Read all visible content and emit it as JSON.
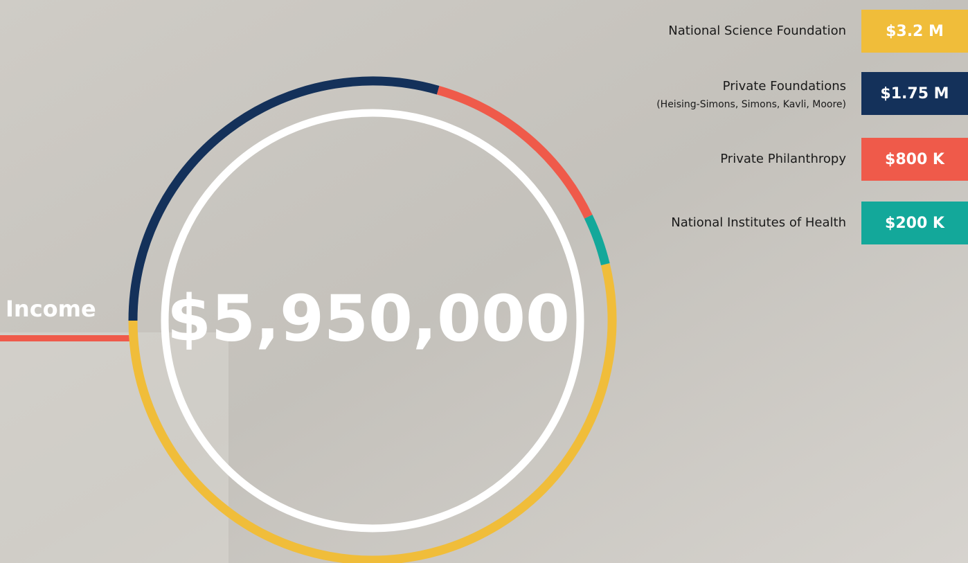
{
  "chart_data": {
    "type": "donut",
    "title": "Income",
    "total": {
      "value": 5950000,
      "label": "$5,950,000"
    },
    "categories": [
      "National Science Foundation",
      "Private Foundations",
      "Private Philanthropy",
      "National Institutes of Health"
    ],
    "category_notes": [
      null,
      "(Heising-Simons, Simons, Kavli, Moore)",
      null,
      null
    ],
    "values": [
      3200000,
      1750000,
      800000,
      200000
    ],
    "value_labels": [
      "$3.2 M",
      "$1.75 M",
      "$800 K",
      "$200 K"
    ],
    "colors": [
      "#f0bd3a",
      "#14315a",
      "#ef5a4a",
      "#13a89a"
    ]
  }
}
